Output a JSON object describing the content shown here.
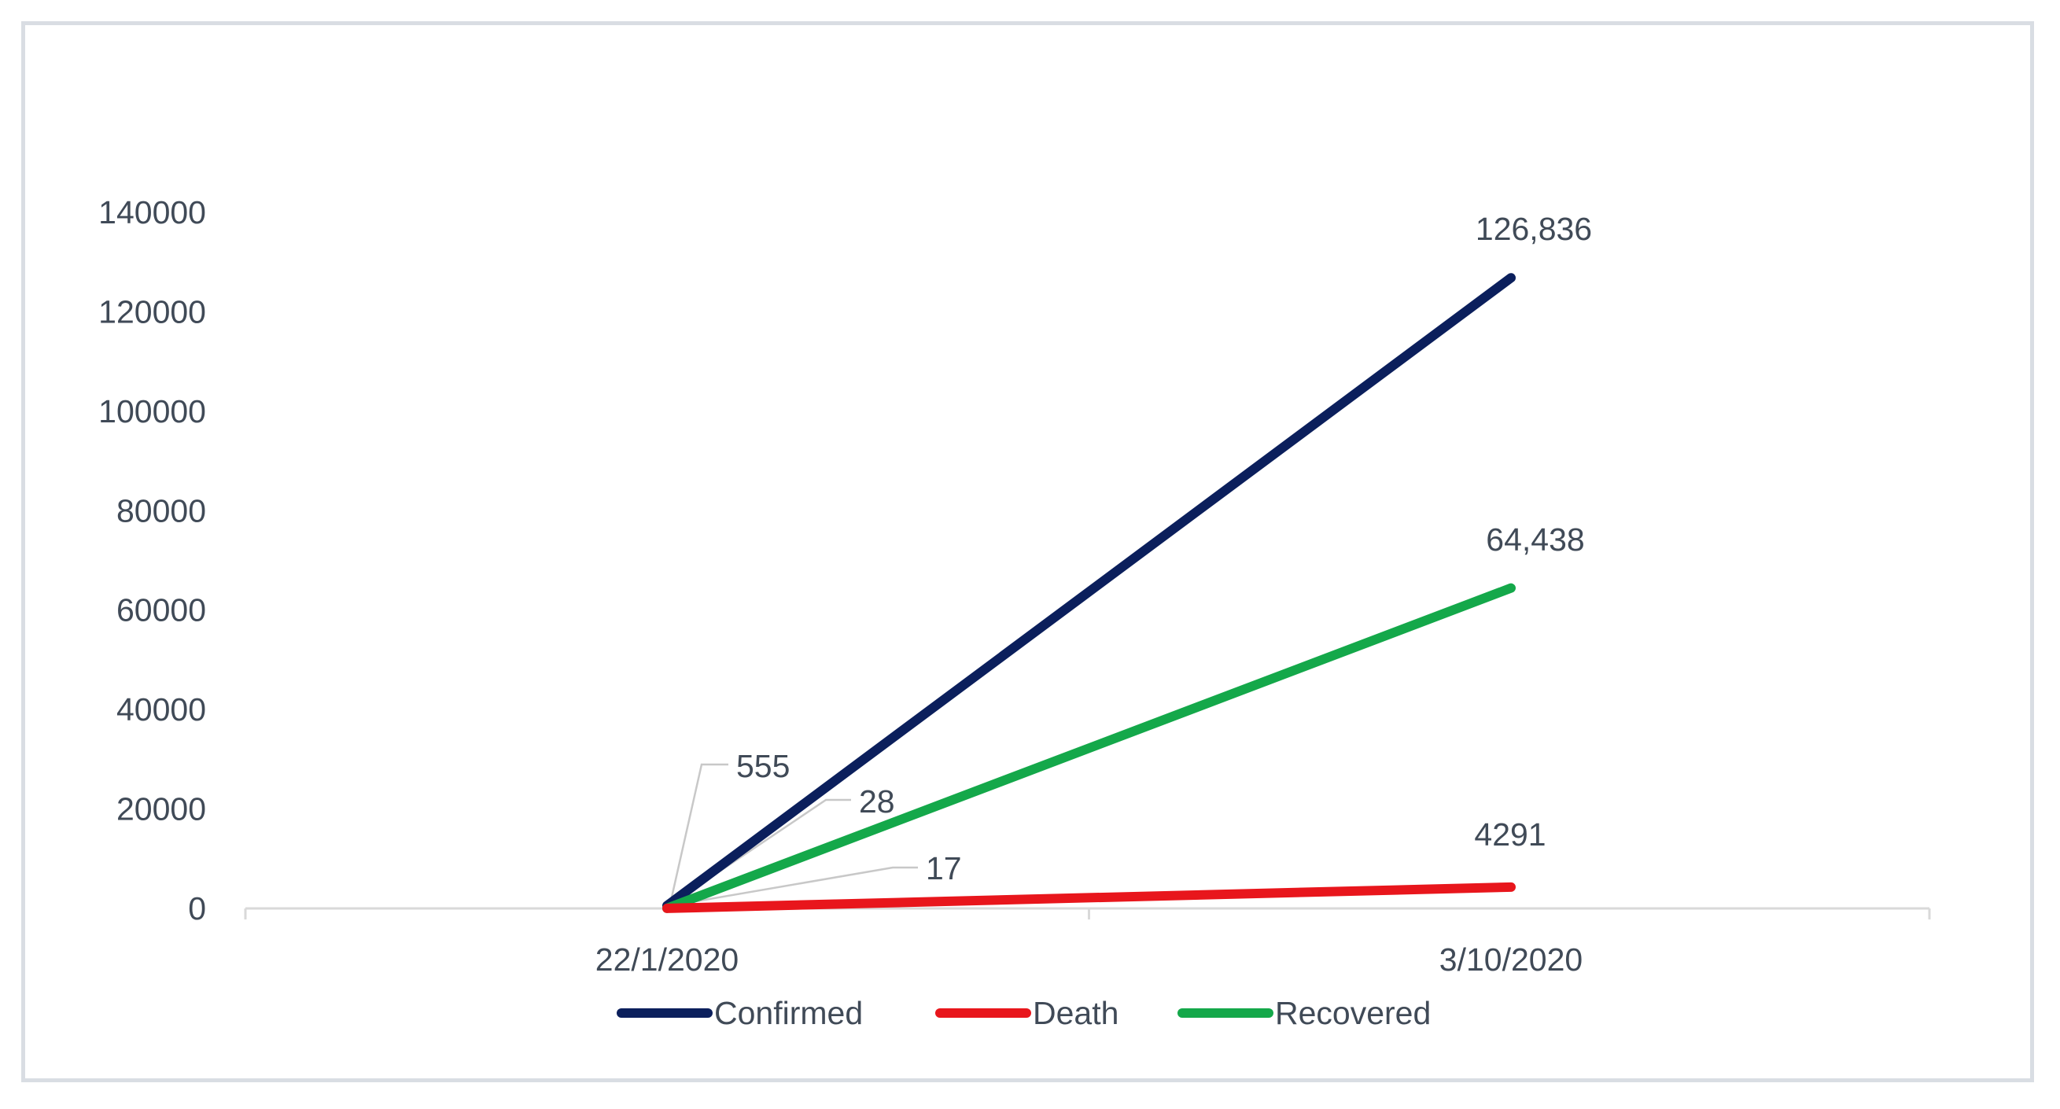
{
  "chart_data": {
    "type": "line",
    "title": "",
    "xlabel": "",
    "ylabel": "",
    "categories": [
      "22/1/2020",
      "3/10/2020"
    ],
    "ylim": [
      0,
      140000
    ],
    "yticks": [
      "0",
      "20000",
      "40000",
      "60000",
      "80000",
      "100000",
      "120000",
      "140000"
    ],
    "grid": false,
    "legend": "bottom",
    "series": [
      {
        "name": "Confirmed",
        "color": "#0b1f5c",
        "values": [
          555,
          126836
        ],
        "labels": [
          "555",
          "126,836"
        ]
      },
      {
        "name": "Death",
        "color": "#e8161c",
        "values": [
          17,
          4291
        ],
        "labels": [
          "17",
          "4291"
        ]
      },
      {
        "name": "Recovered",
        "color": "#14a84a",
        "values": [
          28,
          64438
        ],
        "labels": [
          "28",
          "64,438"
        ]
      }
    ]
  }
}
